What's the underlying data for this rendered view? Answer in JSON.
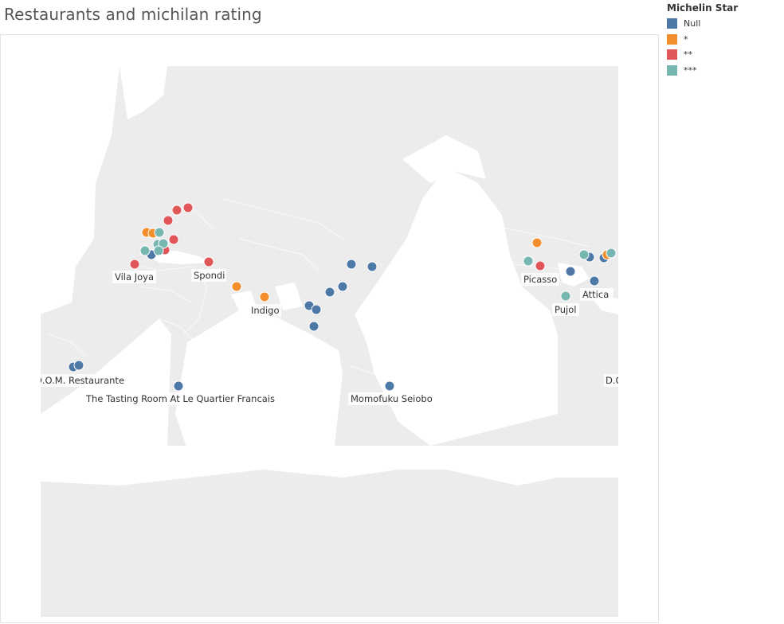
{
  "title": "Restaurants and michilan rating",
  "legend": {
    "title": "Michelin Star",
    "items": [
      {
        "label": "Null",
        "color": "#4e79a7"
      },
      {
        "label": "*",
        "color": "#f28e2b"
      },
      {
        "label": "**",
        "color": "#e15759"
      },
      {
        "label": "***",
        "color": "#76b7b2"
      }
    ]
  },
  "map_labels": {
    "vila_joya": "Vila Joya",
    "spondi": "Spondi",
    "indigo": "Indigo",
    "dom_restaurante": "D.O.M. Restaurante",
    "tasting_room": "The Tasting Room At Le Quartier Francais",
    "momofuku": "Momofuku Seiobo",
    "picasso": "Picasso",
    "pujol": "Pujol",
    "attica": "Attica",
    "dc": "D.C"
  }
}
